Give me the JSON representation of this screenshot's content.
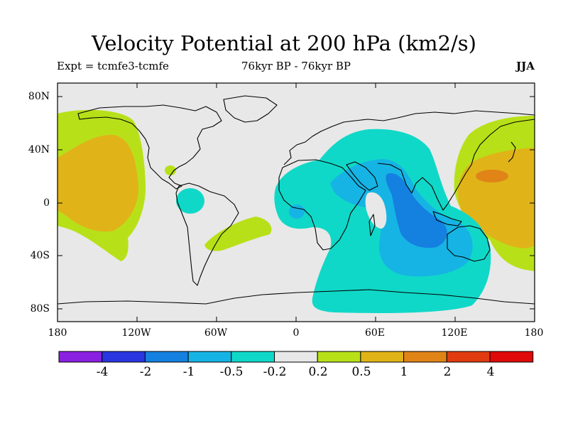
{
  "title": "Velocity Potential at 200 hPa (km2/s)",
  "subtitle_left": "Expt = tcmfe3-tcmfe",
  "subtitle_mid": "76kyr BP - 76kyr BP",
  "season": "JJA",
  "lat_labels": [
    "80N",
    "40N",
    "0",
    "40S",
    "80S"
  ],
  "lon_labels": [
    "180",
    "120W",
    "60W",
    "0",
    "60E",
    "120E",
    "180"
  ],
  "colorbar": {
    "labels": [
      "-4",
      "-2",
      "-1",
      "-0.5",
      "-0.2",
      "0.2",
      "0.5",
      "1",
      "2",
      "4"
    ],
    "colors": [
      "#8a20e0",
      "#2a36e0",
      "#1480e0",
      "#16b4e4",
      "#10d8c8",
      "#e8e8e8",
      "#b8e018",
      "#e0b418",
      "#e08418",
      "#e03c10",
      "#e00a0a"
    ]
  },
  "colors": {
    "land_outline": "#000000",
    "background": "#e8e8e8"
  }
}
